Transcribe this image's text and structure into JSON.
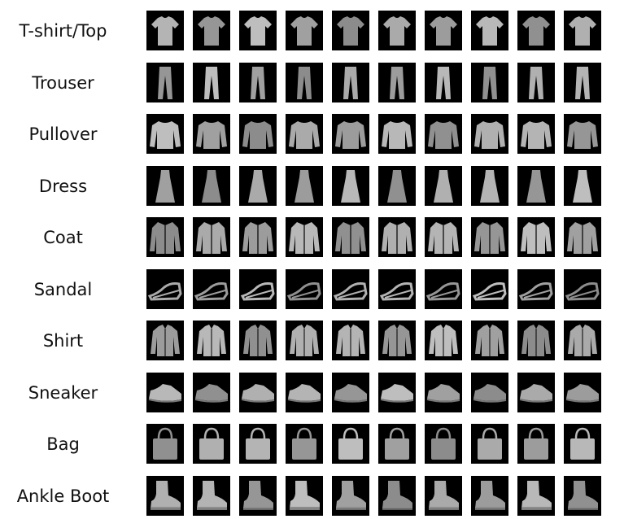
{
  "rows": [
    {
      "label": "T-shirt/Top",
      "icon": "tshirt-icon"
    },
    {
      "label": "Trouser",
      "icon": "trouser-icon"
    },
    {
      "label": "Pullover",
      "icon": "pullover-icon"
    },
    {
      "label": "Dress",
      "icon": "dress-icon"
    },
    {
      "label": "Coat",
      "icon": "coat-icon"
    },
    {
      "label": "Sandal",
      "icon": "sandal-icon"
    },
    {
      "label": "Shirt",
      "icon": "shirt-icon"
    },
    {
      "label": "Sneaker",
      "icon": "sneaker-icon"
    },
    {
      "label": "Bag",
      "icon": "bag-icon"
    },
    {
      "label": "Ankle Boot",
      "icon": "ankle-boot-icon"
    }
  ],
  "images_per_row": 10,
  "colors": {
    "thumb_background": "#000000",
    "garment_fill": "#c8c8c8",
    "label_text": "#111111"
  }
}
